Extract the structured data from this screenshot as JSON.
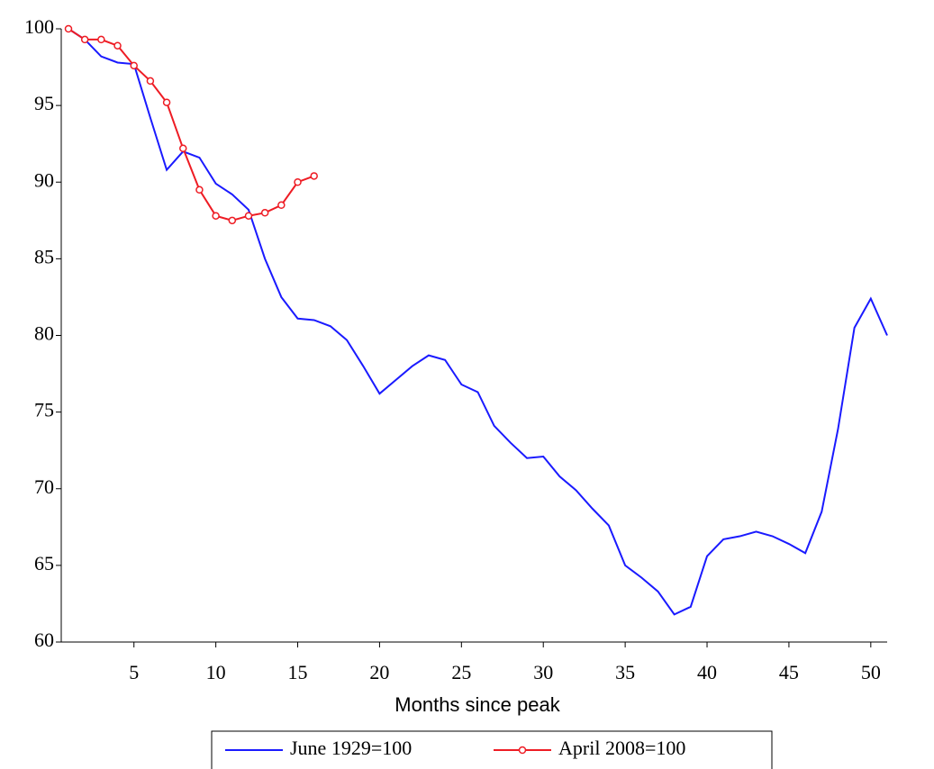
{
  "chart_data": {
    "type": "line",
    "x_label": "Months since peak",
    "x": [
      1,
      2,
      3,
      4,
      5,
      6,
      7,
      8,
      9,
      10,
      11,
      12,
      13,
      14,
      15,
      16,
      17,
      18,
      19,
      20,
      21,
      22,
      23,
      24,
      25,
      26,
      27,
      28,
      29,
      30,
      31,
      32,
      33,
      34,
      35,
      36,
      37,
      38,
      39,
      40,
      41,
      42,
      43,
      44,
      45,
      46,
      47,
      48,
      49,
      50,
      51
    ],
    "series": [
      {
        "name": "June 1929=100",
        "color": "#1a1aff",
        "values": [
          100,
          99.3,
          98.2,
          97.8,
          97.7,
          94.2,
          90.8,
          92.0,
          91.6,
          89.9,
          89.2,
          88.2,
          85.0,
          82.5,
          81.1,
          81.0,
          80.6,
          79.7,
          78.0,
          76.2,
          77.1,
          78.0,
          78.7,
          78.4,
          76.8,
          76.3,
          74.1,
          73.0,
          72.0,
          72.1,
          70.8,
          69.9,
          68.7,
          67.6,
          65.0,
          64.2,
          63.3,
          61.8,
          62.3,
          65.6,
          66.7,
          66.9,
          67.2,
          66.9,
          66.4,
          65.8,
          68.5,
          73.9,
          80.5,
          82.4,
          80.0
        ]
      },
      {
        "name": "April 2008=100",
        "color": "#ee1c24",
        "marker": "circle",
        "values": [
          100,
          99.3,
          99.3,
          98.9,
          97.6,
          96.6,
          95.2,
          92.2,
          89.5,
          87.8,
          87.5,
          87.8,
          88.0,
          88.5,
          90.0,
          90.4,
          null,
          null,
          null,
          null,
          null,
          null,
          null,
          null,
          null,
          null,
          null,
          null,
          null,
          null,
          null,
          null,
          null,
          null,
          null,
          null,
          null,
          null,
          null,
          null,
          null,
          null,
          null,
          null,
          null,
          null,
          null,
          null,
          null,
          null,
          null
        ]
      }
    ],
    "xlim": [
      1,
      51
    ],
    "xticks": [
      5,
      10,
      15,
      20,
      25,
      30,
      35,
      40,
      45,
      50
    ],
    "ylim": [
      60,
      100
    ],
    "yticks": [
      60,
      65,
      70,
      75,
      80,
      85,
      90,
      95,
      100
    ],
    "grid": false,
    "legend": "bottom"
  }
}
